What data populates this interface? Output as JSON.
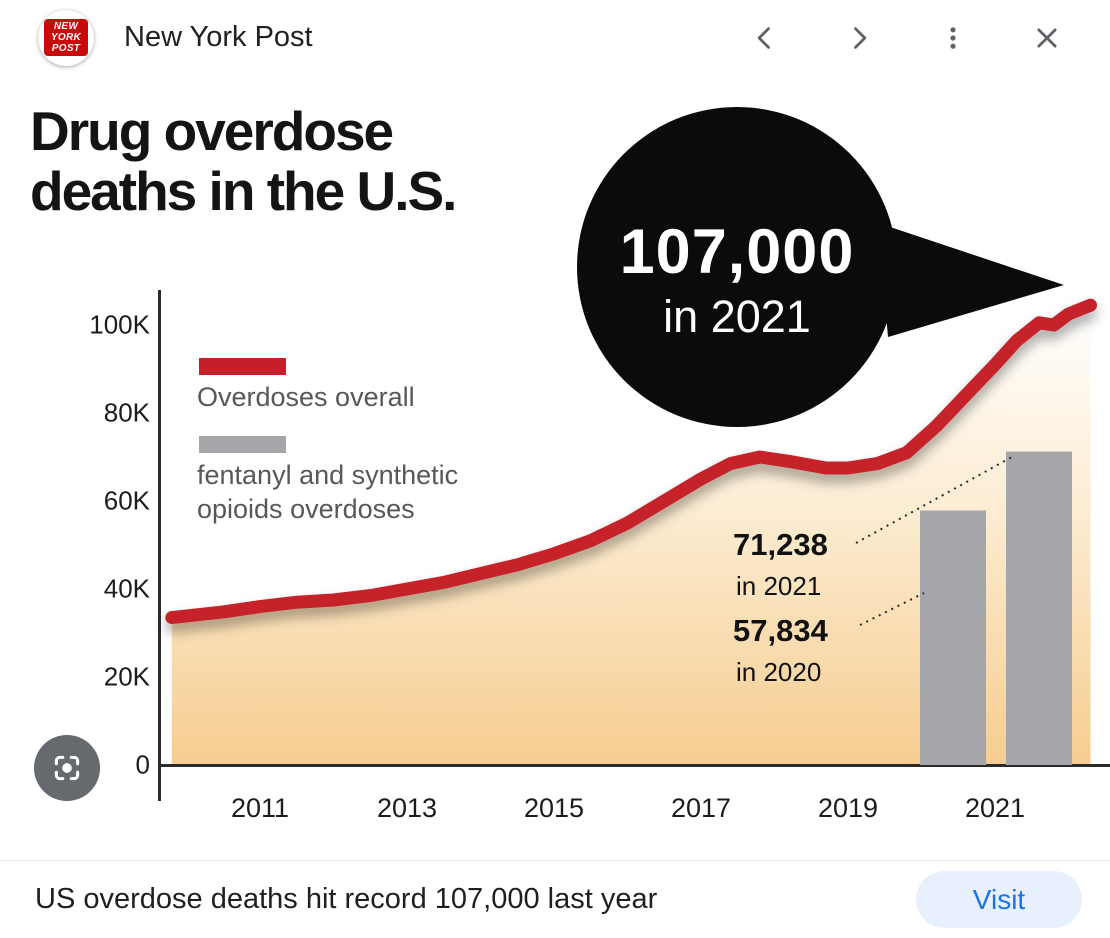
{
  "header": {
    "title": "New York Post",
    "logo_lines": [
      "NEW",
      "YORK",
      "POST"
    ]
  },
  "icons": {
    "back": "chevron-left",
    "forward": "chevron-right",
    "more": "kebab-menu",
    "close": "x",
    "lens": "lens-viewfinder"
  },
  "chart": {
    "title_line1": "Drug overdose",
    "title_line2": "deaths in the U.S.",
    "callout_value": "107,000",
    "callout_sub": "in 2021",
    "legend1_label": "Overdoses overall",
    "legend2_line1": "fentanyl and synthetic",
    "legend2_line2": "opioids overdoses",
    "anno1_value": "71,238",
    "anno1_sub": "in 2021",
    "anno2_value": "57,834",
    "anno2_sub": "in 2020"
  },
  "chart_data": {
    "type": "line+bar",
    "title": "Drug overdose deaths in the U.S.",
    "ylim": [
      0,
      100000
    ],
    "grid": false,
    "legend_position": "upper-left",
    "y_ticks": [
      {
        "v": 0,
        "label": "0"
      },
      {
        "v": 20000,
        "label": "20K"
      },
      {
        "v": 40000,
        "label": "40K"
      },
      {
        "v": 60000,
        "label": "60K"
      },
      {
        "v": 80000,
        "label": "80K"
      },
      {
        "v": 100000,
        "label": "100K"
      }
    ],
    "x_ticks": [
      {
        "v": 2011,
        "label": "2011"
      },
      {
        "v": 2013,
        "label": "2013"
      },
      {
        "v": 2015,
        "label": "2015"
      },
      {
        "v": 2017,
        "label": "2017"
      },
      {
        "v": 2019,
        "label": "2019"
      },
      {
        "v": 2021,
        "label": "2021"
      }
    ],
    "series": [
      {
        "name": "Overdoses overall",
        "type": "line",
        "color": "#c5202a",
        "points": [
          [
            2009.8,
            33500
          ],
          [
            2010.5,
            34800
          ],
          [
            2011,
            36000
          ],
          [
            2011.5,
            37000
          ],
          [
            2012,
            37500
          ],
          [
            2012.5,
            38500
          ],
          [
            2013,
            40000
          ],
          [
            2013.5,
            41500
          ],
          [
            2014,
            43500
          ],
          [
            2014.5,
            45500
          ],
          [
            2015,
            48000
          ],
          [
            2015.5,
            51000
          ],
          [
            2016,
            55000
          ],
          [
            2016.5,
            60000
          ],
          [
            2017,
            65000
          ],
          [
            2017.4,
            68500
          ],
          [
            2017.8,
            70000
          ],
          [
            2018.2,
            69000
          ],
          [
            2018.7,
            67500
          ],
          [
            2019,
            67500
          ],
          [
            2019.4,
            68500
          ],
          [
            2019.8,
            71000
          ],
          [
            2020.2,
            77000
          ],
          [
            2020.6,
            84000
          ],
          [
            2021,
            91000
          ],
          [
            2021.3,
            96500
          ],
          [
            2021.6,
            100500
          ],
          [
            2021.8,
            100000
          ],
          [
            2022,
            102500
          ],
          [
            2022.3,
            104500
          ]
        ],
        "peak_annotation": {
          "value": 107000,
          "label": "107,000 in 2021"
        }
      },
      {
        "name": "fentanyl and synthetic opioids overdoses",
        "type": "bar",
        "color": "#a5a6aa",
        "points": [
          [
            2020,
            57834
          ],
          [
            2021,
            71238
          ]
        ]
      }
    ],
    "annotations": [
      {
        "text": "71,238 in 2021",
        "target": "fentanyl bar 2021"
      },
      {
        "text": "57,834 in 2020",
        "target": "fentanyl bar 2020"
      }
    ]
  },
  "colors": {
    "line_red": "#c5202a",
    "bar_gray": "#a5a6aa",
    "callout_black": "#0b0b0b",
    "visit_blue": "#1a73e8",
    "visit_bg": "#e8f0fe"
  },
  "footer": {
    "caption": "US overdose deaths hit record 107,000 last year",
    "visit_label": "Visit"
  }
}
